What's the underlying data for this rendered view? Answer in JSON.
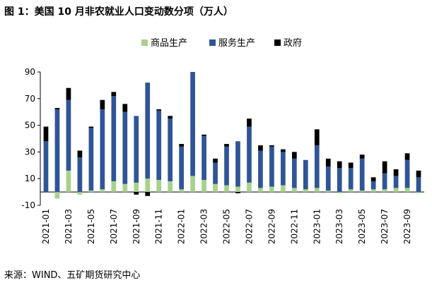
{
  "header": {
    "title": "图 1：美国 10 月非农就业人口变动数分项（万人）"
  },
  "footer": {
    "source": "来源：WIND、五矿期货研究中心"
  },
  "colors": {
    "goods": "#a9d18e",
    "services": "#2f5597",
    "government": "#000000"
  },
  "chart_data": {
    "type": "bar",
    "stacked": true,
    "title": "美国 10 月非农就业人口变动数分项（万人）",
    "unit": "万人",
    "ylim": [
      -10,
      90
    ],
    "yticks": [
      -10,
      10,
      30,
      50,
      70,
      90
    ],
    "legend_position": "top-center",
    "categories": [
      "2021-01",
      "2021-02",
      "2021-03",
      "2021-04",
      "2021-05",
      "2021-06",
      "2021-07",
      "2021-08",
      "2021-09",
      "2021-10",
      "2021-11",
      "2021-12",
      "2022-01",
      "2022-02",
      "2022-03",
      "2022-04",
      "2022-05",
      "2022-06",
      "2022-07",
      "2022-08",
      "2022-09",
      "2022-10",
      "2022-11",
      "2022-12",
      "2023-01",
      "2023-02",
      "2023-03",
      "2023-04",
      "2023-05",
      "2023-06",
      "2023-07",
      "2023-08",
      "2023-09",
      "2023-10"
    ],
    "xtick_labels": [
      "2021-01",
      "2021-03",
      "2021-05",
      "2021-07",
      "2021-09",
      "2021-11",
      "2022-01",
      "2022-03",
      "2022-05",
      "2022-07",
      "2022-09",
      "2022-11",
      "2023-01",
      "2023-03",
      "2023-05",
      "2023-07",
      "2023-09"
    ],
    "series": [
      {
        "name": "商品生产",
        "key": "goods",
        "values": [
          0,
          -5,
          16,
          -2,
          1,
          2,
          8,
          6,
          7,
          10,
          9,
          8,
          2,
          12,
          9,
          6,
          5,
          4,
          7,
          3,
          4,
          5,
          3,
          2,
          3,
          1,
          -1,
          2,
          1,
          2,
          2,
          3,
          3,
          -1
        ]
      },
      {
        "name": "服务生产",
        "key": "services",
        "values": [
          38,
          62,
          53,
          26,
          47,
          60,
          64,
          54,
          50,
          72,
          52,
          47,
          32,
          78,
          33,
          16,
          29,
          34,
          42,
          28,
          30,
          25,
          22,
          22,
          32,
          18,
          18,
          16,
          24,
          6,
          12,
          9,
          21,
          11
        ]
      },
      {
        "name": "政府",
        "key": "government",
        "values": [
          11,
          1,
          9,
          5,
          1,
          7,
          3,
          6,
          -2,
          -3,
          1,
          2,
          2,
          0,
          1,
          3,
          2,
          -1,
          6,
          4,
          1,
          2,
          5,
          0,
          12,
          6,
          5,
          4,
          3,
          3,
          9,
          5,
          5,
          5
        ]
      }
    ]
  }
}
